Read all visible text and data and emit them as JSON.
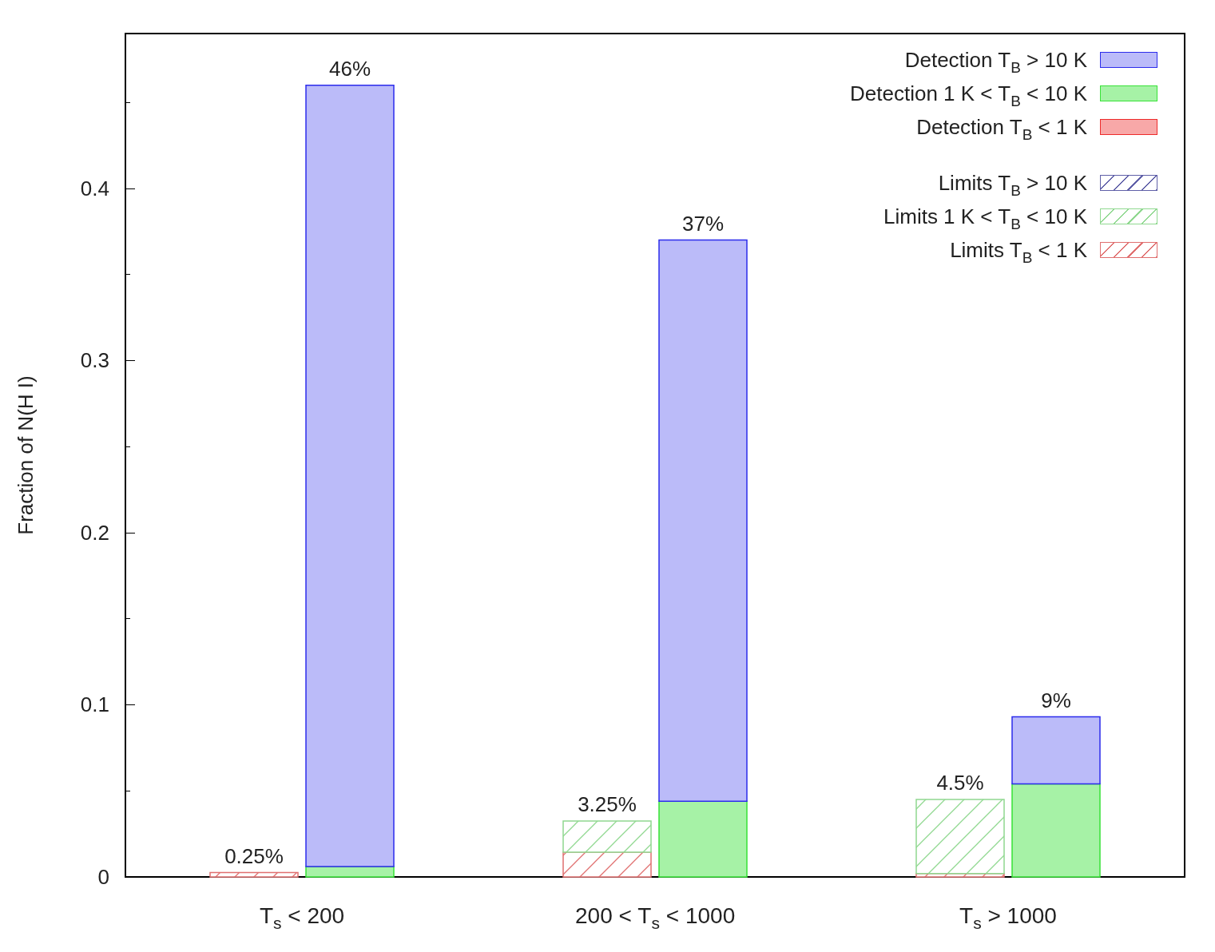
{
  "chart_data": {
    "type": "bar",
    "ylabel": "Fraction of N(H I)",
    "categories": [
      "T$_{s}$ < 200",
      "200 < T$_{s}$ < 1000",
      "T$_{s}$ > 1000"
    ],
    "series": [
      {
        "name": "Limits T$_{B}$ < 1 K",
        "color": "#e07070",
        "base": [
          0,
          0,
          0
        ],
        "values": [
          0.0025,
          0.0144,
          0.002
        ]
      },
      {
        "name": "Limits 1 K < T$_{B}$ < 10 K",
        "color": "#90d890",
        "base": [
          null,
          0.0144,
          0.002
        ],
        "values": [
          null,
          0.0181,
          0.043
        ]
      },
      {
        "name": "Limits T$_{B}$ > 10 K",
        "color": "#6060a8",
        "base": [
          null,
          null,
          null
        ],
        "values": [
          null,
          null,
          null
        ]
      },
      {
        "name": "Detection T$_{B}$ < 1 K",
        "color": "#f8a8a8",
        "base": [
          null,
          null,
          null
        ],
        "values": [
          null,
          null,
          null
        ]
      },
      {
        "name": "Detection 1 K < T$_{B}$ < 10 K",
        "color": "#a6f2a6",
        "base": [
          0,
          0,
          0
        ],
        "values": [
          0.006,
          0.044,
          0.054
        ]
      },
      {
        "name": "Detection T$_{B}$ > 10 K",
        "color": "#bbbbf9",
        "base": [
          0.006,
          0.044,
          0.054
        ],
        "values": [
          0.454,
          0.326,
          0.039
        ]
      }
    ],
    "annotations": [
      {
        "text": "0.25%",
        "x": "T$_{s}$ < 200",
        "y": 0.0025
      },
      {
        "text": "46%",
        "x": "T$_{s}$ < 200",
        "y": 0.46
      },
      {
        "text": "3.25%",
        "x": "200 < T$_{s}$ < 1000",
        "y": 0.0325
      },
      {
        "text": "37%",
        "x": "200 < T$_{s}$ < 1000",
        "y": 0.37
      },
      {
        "text": "4.5%",
        "x": "T$_{s}$ > 1000",
        "y": 0.045
      },
      {
        "text": "9%",
        "x": "T$_{s}$ > 1000",
        "y": 0.093
      }
    ],
    "ylim": [
      0,
      0.49
    ],
    "yticks": [
      0,
      0.1,
      0.2,
      0.3,
      0.4
    ],
    "grid": false,
    "legend": "top right"
  }
}
